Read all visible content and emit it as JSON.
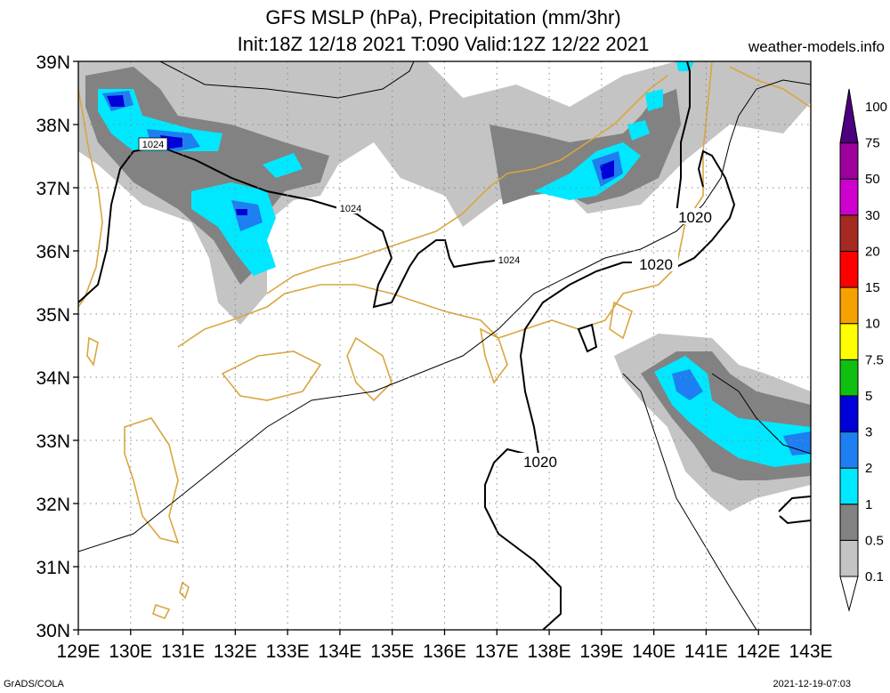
{
  "header": {
    "title_line1": "GFS MSLP (hPa), Precipitation (mm/3hr)",
    "title_line2": "Init:18Z 12/18 2021 T:090 Valid:12Z 12/22 2021",
    "site": "weather-models.info"
  },
  "footer": {
    "left": "GrADS/COLA",
    "right": "2021-12-19-07:03"
  },
  "map": {
    "lat_labels": [
      "39N",
      "38N",
      "37N",
      "36N",
      "35N",
      "34N",
      "33N",
      "32N",
      "31N",
      "30N"
    ],
    "lon_labels": [
      "129E",
      "130E",
      "131E",
      "132E",
      "133E",
      "134E",
      "135E",
      "136E",
      "137E",
      "138E",
      "139E",
      "140E",
      "141E",
      "142E",
      "143E"
    ],
    "isobar_labels": [
      {
        "text": "1024",
        "style": "small-boxed"
      },
      {
        "text": "1024",
        "style": "small"
      },
      {
        "text": "1024",
        "style": "small"
      },
      {
        "text": "1020",
        "style": "large"
      },
      {
        "text": "1020",
        "style": "large"
      },
      {
        "text": "1020",
        "style": "large"
      }
    ],
    "coast_color": "#d9a640",
    "grid": "dotted"
  },
  "colorbar": {
    "levels": [
      "0.1",
      "0.5",
      "1",
      "2",
      "3",
      "5",
      "7.5",
      "10",
      "15",
      "20",
      "30",
      "50",
      "75",
      "100"
    ],
    "colors": [
      "#c4c4c4",
      "#828282",
      "#00e8ff",
      "#1e7ff0",
      "#0000d8",
      "#10c010",
      "#ffff00",
      "#f7a100",
      "#ff0000",
      "#a52a22",
      "#cd00cd",
      "#9d009d",
      "#4c0080"
    ]
  }
}
